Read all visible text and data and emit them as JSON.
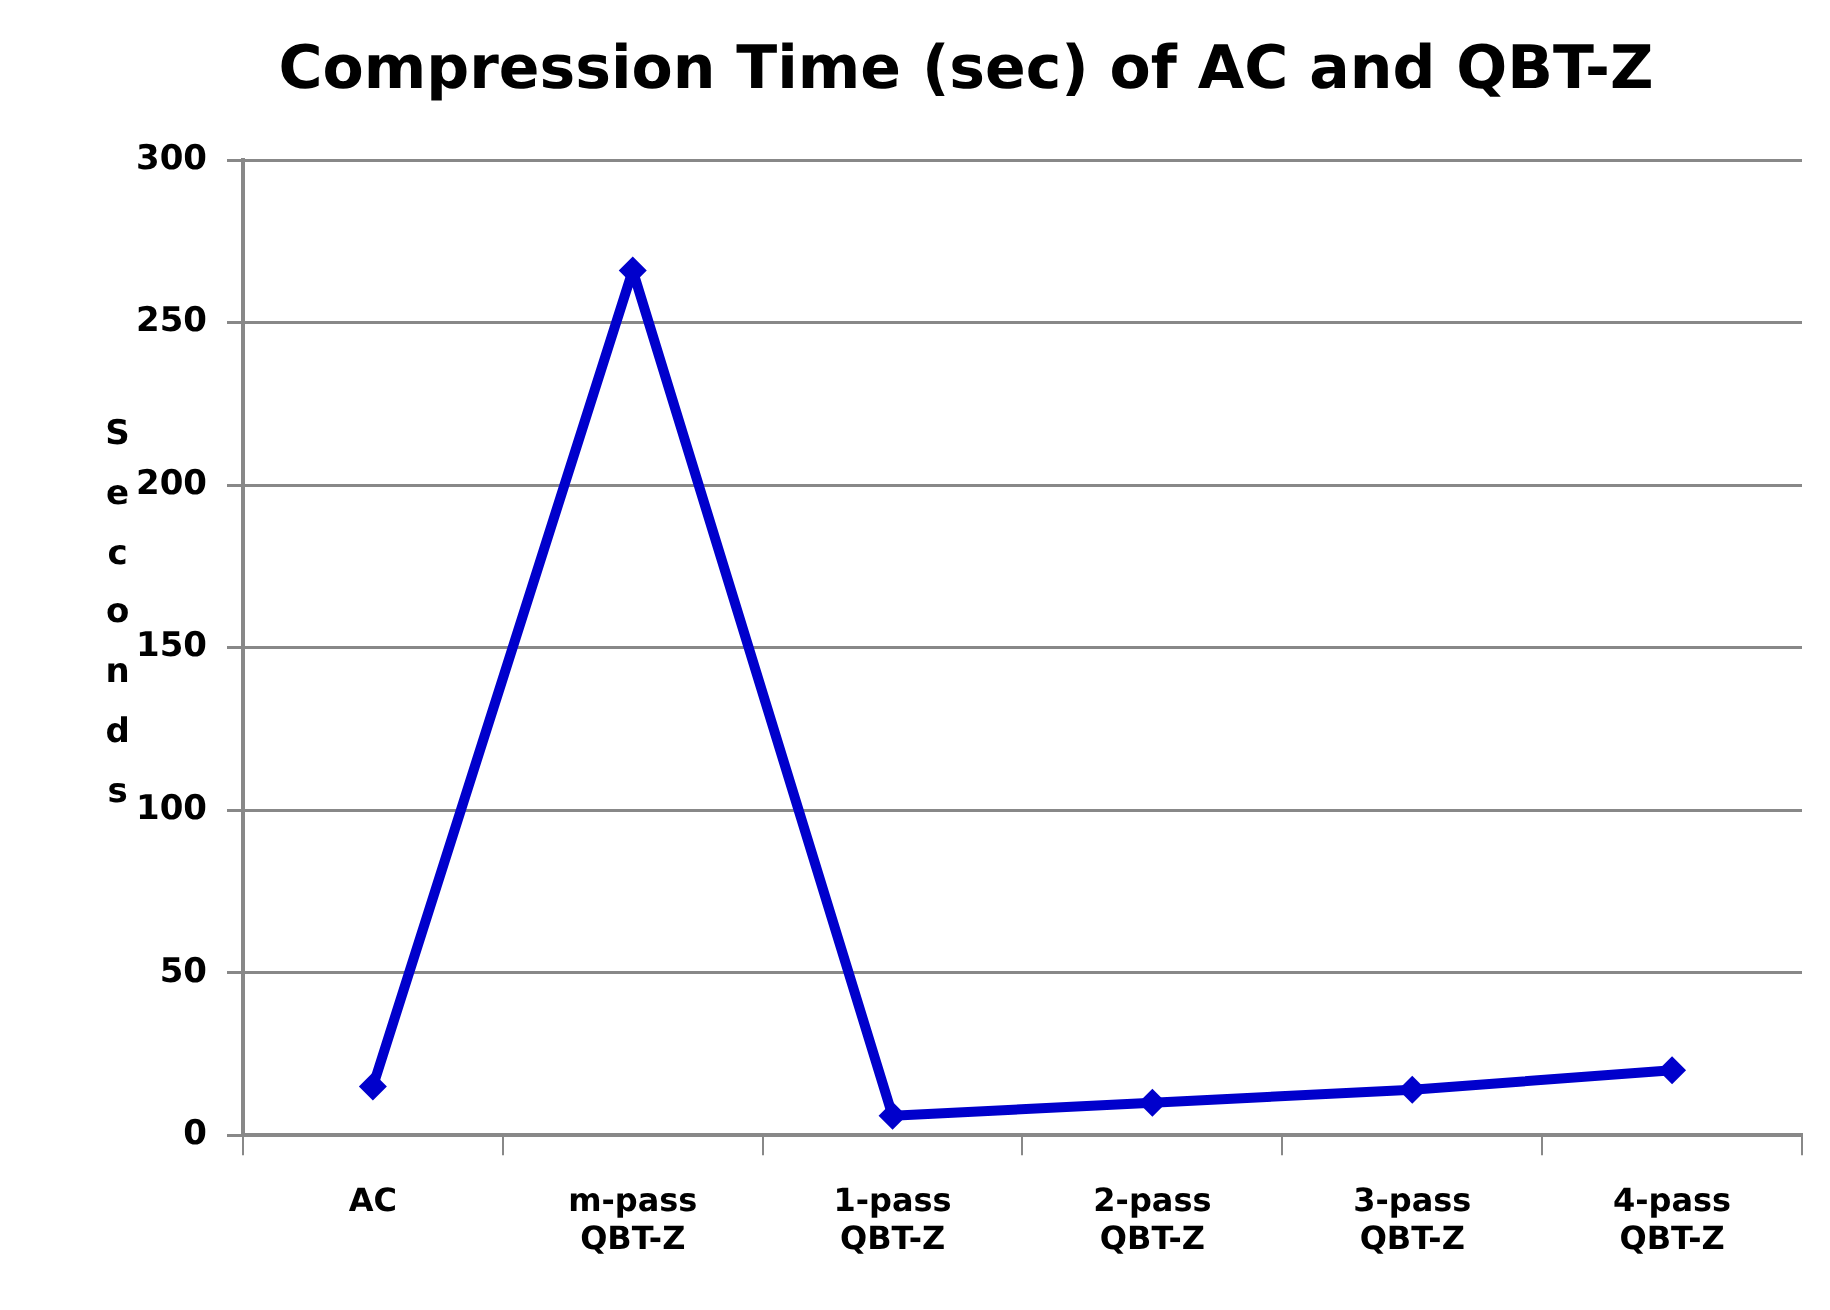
{
  "chart_data": {
    "type": "line",
    "title": "Compression Time (sec) of AC and QBT-Z",
    "ylabel": "Seconds",
    "categories": [
      "AC",
      "m-pass QBT-Z",
      "1-pass QBT-Z",
      "2-pass QBT-Z",
      "3-pass QBT-Z",
      "4-pass QBT-Z"
    ],
    "series": [
      {
        "color": "#0000cc",
        "values": [
          15,
          266,
          6,
          10,
          14,
          20
        ]
      }
    ],
    "ylim": [
      0,
      300
    ],
    "yticks": [
      0,
      50,
      100,
      150,
      200,
      250,
      300
    ],
    "grid": "y",
    "legend": false,
    "marker": "diamond",
    "line_style": "solid"
  }
}
